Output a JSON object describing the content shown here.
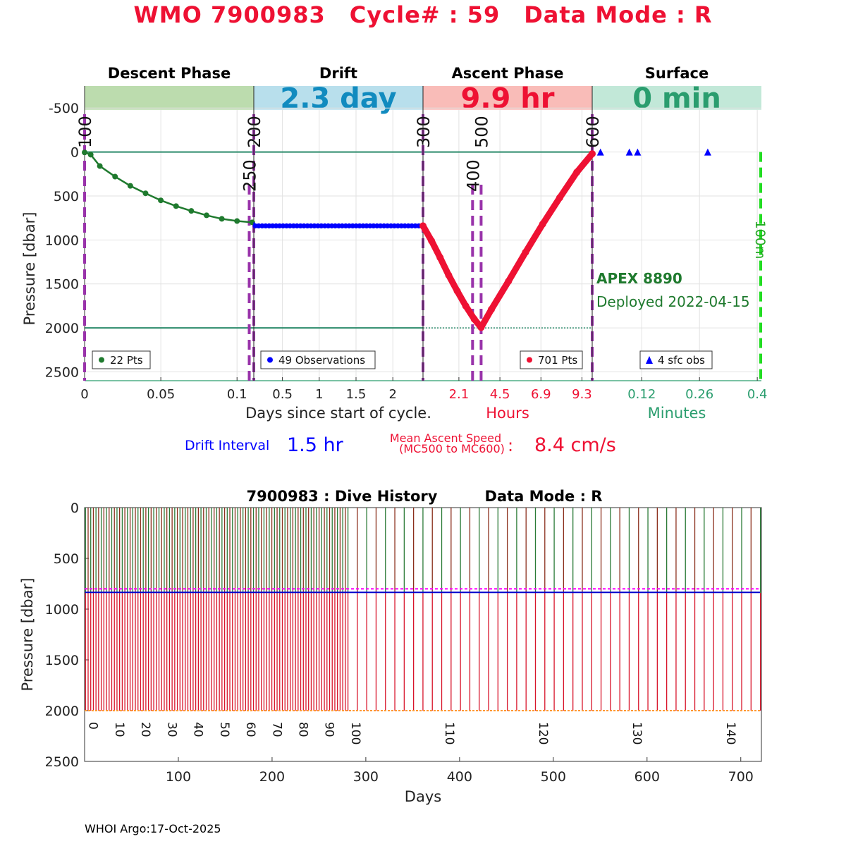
{
  "header": {
    "title_part1": "WMO 7900983",
    "title_part2": "Cycle# : 59",
    "title_part3": "Data Mode : R"
  },
  "colors": {
    "title": "#ee1133",
    "descent": "#1f7a2e",
    "drift": "#0000ff",
    "ascent": "#ee1133",
    "surface_text": "#2a9d6e",
    "marker_line": "#9933aa"
  },
  "chart_data": [
    {
      "id": "cycle-profile",
      "type": "line",
      "ylabel": "Pressure [dbar]",
      "ylim": [
        -750,
        2600
      ],
      "y_ticks": [
        "-500",
        "0",
        "500",
        "1000",
        "1500",
        "2000",
        "2500"
      ],
      "y_tick_values": [
        -500,
        0,
        500,
        1000,
        1500,
        2000,
        2500
      ],
      "reference_lines": [
        0,
        2000
      ],
      "panels": [
        {
          "key": "descent",
          "label": "Descent Phase",
          "band_color": "#bcdcae",
          "band_text": "",
          "x_ticks": [
            "0",
            "0.05",
            "0.1"
          ],
          "x_tick_values": [
            0,
            0.05,
            0.1
          ],
          "xlim": [
            0,
            0.111
          ]
        },
        {
          "key": "drift",
          "label": "Drift",
          "band_color": "#b8dfec",
          "band_text": "2.3 day",
          "band_text_color": "#118bbf",
          "x_ticks": [
            "0.5",
            "1",
            "1.5",
            "2"
          ],
          "x_tick_values": [
            0.5,
            1,
            1.5,
            2
          ],
          "xlim": [
            0.111,
            2.41
          ]
        },
        {
          "key": "ascent",
          "label": "Ascent Phase",
          "band_color": "#f9bcb8",
          "band_text": "9.9 hr",
          "band_text_color": "#ee1133",
          "x_ticks": [
            "2.1",
            "4.5",
            "6.9",
            "9.3"
          ],
          "x_tick_values": [
            2.1,
            4.5,
            6.9,
            9.3
          ],
          "xlim": [
            0,
            9.9
          ]
        },
        {
          "key": "surface",
          "label": "Surface",
          "band_color": "#c2e8d8",
          "band_text": "0 min",
          "band_text_color": "#2a9d6e",
          "x_ticks": [
            "0.12",
            "0.26",
            "0.4"
          ],
          "x_tick_values": [
            0.12,
            0.26,
            0.4
          ],
          "xlim": [
            0,
            0.41
          ]
        }
      ],
      "xlabels": {
        "days": "Days since start of cycle.",
        "hours": "Hours",
        "minutes": "Minutes"
      },
      "mission_codes": [
        {
          "label": "100",
          "panel": "descent",
          "x": 0
        },
        {
          "label": "200",
          "panel": "drift",
          "x": 0.111
        },
        {
          "label": "250",
          "panel": "descent",
          "x": 0.108
        },
        {
          "label": "300",
          "panel": "ascent",
          "x": 0
        },
        {
          "label": "400",
          "panel": "ascent",
          "x": 2.9
        },
        {
          "label": "500",
          "panel": "ascent",
          "x": 3.4
        },
        {
          "label": "600",
          "panel": "surface",
          "x": 0
        }
      ],
      "series": [
        {
          "name": "Descent",
          "legend": "22 Pts",
          "color": "#1f7a2e",
          "marker": "circle",
          "x": [
            0,
            0.004,
            0.01,
            0.02,
            0.03,
            0.04,
            0.05,
            0.06,
            0.07,
            0.08,
            0.09,
            0.1,
            0.11
          ],
          "y": [
            5,
            30,
            160,
            280,
            385,
            470,
            550,
            615,
            670,
            720,
            760,
            785,
            800
          ]
        },
        {
          "name": "Drift",
          "legend": "49 Observations",
          "color": "#0000ff",
          "marker": "circle",
          "x_range": [
            0.13,
            2.4
          ],
          "count": 49,
          "y": 840
        },
        {
          "name": "Ascent",
          "legend": "701 Pts",
          "color": "#ee1133",
          "marker": "circle",
          "x": [
            0,
            0.5,
            1.0,
            1.5,
            2.0,
            2.5,
            3.0,
            3.4,
            4.0,
            5.0,
            6.0,
            7.0,
            8.0,
            9.0,
            9.9
          ],
          "y": [
            840,
            1010,
            1200,
            1400,
            1580,
            1750,
            1900,
            1995,
            1790,
            1470,
            1140,
            820,
            520,
            230,
            20
          ]
        },
        {
          "name": "Surface",
          "legend": "4 sfc obs",
          "color": "#0000ff",
          "marker": "triangle",
          "x": [
            0.02,
            0.09,
            0.11,
            0.28
          ],
          "y": [
            0,
            0,
            0,
            0
          ]
        }
      ],
      "annotations": {
        "float_type": "APEX 8890",
        "deployed": "Deployed 2022-04-15",
        "vertical_label": "100m"
      }
    },
    {
      "id": "dive-history",
      "type": "line",
      "title": "7900983 : Dive History",
      "title_mode": "Data Mode : R",
      "xlabel": "Days",
      "ylabel": "Pressure [dbar]",
      "xlim": [
        0,
        722
      ],
      "ylim": [
        0,
        2500
      ],
      "x_ticks": [
        "100",
        "200",
        "300",
        "400",
        "500",
        "600",
        "700"
      ],
      "x_tick_values": [
        100,
        200,
        300,
        400,
        500,
        600,
        700
      ],
      "y_ticks": [
        "0",
        "500",
        "1000",
        "1500",
        "2000",
        "2500"
      ],
      "y_tick_values": [
        0,
        500,
        1000,
        1500,
        2000,
        2500
      ],
      "cycles_count": 145,
      "cycle_spacing_days": [
        2.8,
        10
      ],
      "cycle_spacing_switch": 100,
      "drift_pressure": 835,
      "park_reference": 800,
      "profile_reference": 2000,
      "cycle_labels": [
        "0",
        "10",
        "20",
        "30",
        "40",
        "50",
        "60",
        "70",
        "80",
        "90",
        "100",
        "110",
        "120",
        "130",
        "140"
      ],
      "cycle_label_values": [
        0,
        10,
        20,
        30,
        40,
        50,
        60,
        70,
        80,
        90,
        100,
        110,
        120,
        130,
        140
      ]
    }
  ],
  "info": {
    "drift_interval_label": "Drift Interval",
    "drift_interval_value": "1.5 hr",
    "ascent_speed_label_1": "Mean Ascent Speed",
    "ascent_speed_label_2": "(MC500 to MC600)",
    "ascent_speed_colon": ":",
    "ascent_speed_value": "8.4 cm/s"
  },
  "footer": {
    "credit": "WHOI Argo:17-Oct-2025"
  }
}
